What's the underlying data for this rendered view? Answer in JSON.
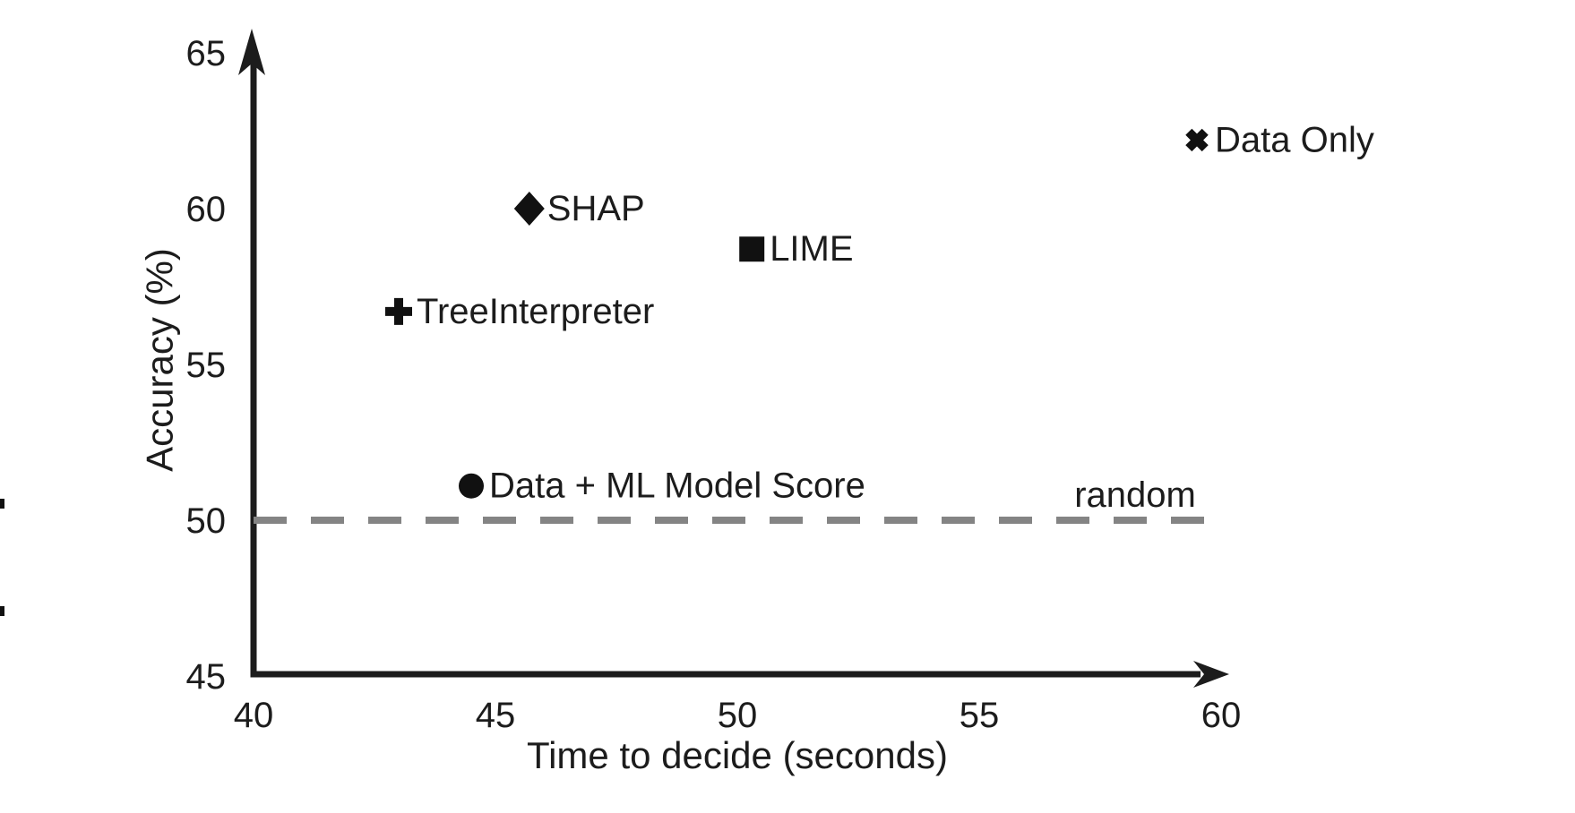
{
  "chart_data": {
    "type": "scatter",
    "title": "",
    "xlabel": "Time to decide (seconds)",
    "ylabel": "Accuracy (%)",
    "xlim": [
      40,
      60
    ],
    "ylim": [
      45,
      65
    ],
    "x_ticks": [
      "40",
      "45",
      "50",
      "55",
      "60"
    ],
    "y_ticks": [
      "45",
      "50",
      "55",
      "60",
      "65"
    ],
    "grid": false,
    "legend": "none (points labeled inline)",
    "points": [
      {
        "label": "SHAP",
        "x": 45.7,
        "y": 60.0,
        "marker": "diamond"
      },
      {
        "label": "LIME",
        "x": 50.3,
        "y": 58.7,
        "marker": "square"
      },
      {
        "label": "TreeInterpreter",
        "x": 43.0,
        "y": 56.7,
        "marker": "plus"
      },
      {
        "label": "Data + ML Model Score",
        "x": 44.5,
        "y": 51.1,
        "marker": "circle"
      },
      {
        "label": "Data Only",
        "x": 59.5,
        "y": 62.2,
        "marker": "x"
      }
    ],
    "reference_line": {
      "label": "random",
      "y": 50,
      "style": "dashed",
      "x_start": 40,
      "x_end": 60
    }
  },
  "colors": {
    "marker": "#111111",
    "text": "#1c1c1c",
    "axis": "#1c1c1c",
    "reference": "#848484",
    "background": "#ffffff"
  }
}
